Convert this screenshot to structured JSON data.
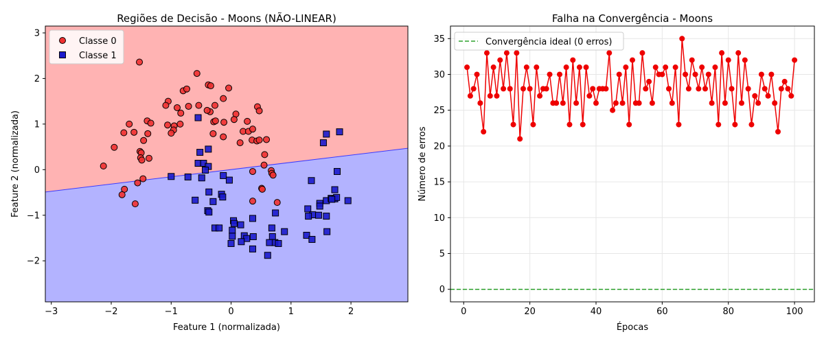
{
  "chart_data": [
    {
      "type": "scatter",
      "title": "Regiões de Decisão - Moons (NÃO-LINEAR)",
      "xlabel": "Feature 1 (normalizada)",
      "ylabel": "Feature 2 (normalizada)",
      "xlim": [
        -3.1,
        2.95
      ],
      "ylim": [
        -2.9,
        3.15
      ],
      "xticks": [
        "−3",
        "−2",
        "−1",
        "0",
        "1",
        "2"
      ],
      "yticks": [
        "−2",
        "−1",
        "0",
        "1",
        "2",
        "3"
      ],
      "decision_boundary": {
        "x": [
          -3.1,
          2.95
        ],
        "y": [
          -0.49,
          0.47
        ]
      },
      "regions": {
        "classe_0_color": "#ffb3b3",
        "classe_1_color": "#b3b3ff"
      },
      "legend_position": "top-left",
      "series": [
        {
          "name": "Classe 0",
          "color": "#ef3030",
          "marker": "circle",
          "points": [
            [
              -1.53,
              2.36
            ],
            [
              -0.57,
              2.11
            ],
            [
              -0.38,
              1.86
            ],
            [
              -0.34,
              1.84
            ],
            [
              -0.04,
              1.79
            ],
            [
              -0.8,
              1.73
            ],
            [
              -0.74,
              1.77
            ],
            [
              -1.05,
              1.5
            ],
            [
              -1.09,
              1.41
            ],
            [
              -0.9,
              1.36
            ],
            [
              -0.71,
              1.39
            ],
            [
              -0.54,
              1.41
            ],
            [
              -0.35,
              1.27
            ],
            [
              -0.4,
              1.3
            ],
            [
              -0.27,
              1.41
            ],
            [
              -0.13,
              1.56
            ],
            [
              -0.84,
              1.24
            ],
            [
              0.44,
              1.38
            ],
            [
              0.47,
              1.29
            ],
            [
              0.08,
              1.22
            ],
            [
              -0.29,
              1.05
            ],
            [
              -0.26,
              1.07
            ],
            [
              -0.12,
              1.04
            ],
            [
              0.05,
              1.1
            ],
            [
              0.27,
              1.06
            ],
            [
              -1.4,
              1.07
            ],
            [
              -1.34,
              1.02
            ],
            [
              -1.06,
              0.98
            ],
            [
              -0.95,
              0.96
            ],
            [
              -0.96,
              0.87
            ],
            [
              -1.0,
              0.8
            ],
            [
              -0.85,
              1.0
            ],
            [
              -1.7,
              1.0
            ],
            [
              -1.62,
              0.82
            ],
            [
              -1.79,
              0.81
            ],
            [
              -1.39,
              0.79
            ],
            [
              -0.3,
              0.79
            ],
            [
              -0.13,
              0.72
            ],
            [
              0.2,
              0.84
            ],
            [
              0.29,
              0.84
            ],
            [
              0.36,
              0.89
            ],
            [
              0.35,
              0.65
            ],
            [
              0.43,
              0.63
            ],
            [
              0.47,
              0.65
            ],
            [
              0.59,
              0.66
            ],
            [
              0.15,
              0.59
            ],
            [
              -1.46,
              0.64
            ],
            [
              -1.95,
              0.49
            ],
            [
              -1.52,
              0.4
            ],
            [
              -1.5,
              0.37
            ],
            [
              -1.51,
              0.26
            ],
            [
              -1.49,
              0.21
            ],
            [
              -1.37,
              0.25
            ],
            [
              -2.13,
              0.08
            ],
            [
              0.56,
              0.33
            ],
            [
              0.55,
              0.1
            ],
            [
              0.67,
              -0.02
            ],
            [
              0.68,
              -0.08
            ],
            [
              0.7,
              -0.12
            ],
            [
              0.36,
              -0.04
            ],
            [
              0.51,
              -0.41
            ],
            [
              0.52,
              -0.43
            ],
            [
              -1.47,
              -0.2
            ],
            [
              -1.56,
              -0.29
            ],
            [
              -1.78,
              -0.43
            ],
            [
              -1.82,
              -0.55
            ],
            [
              -1.6,
              -0.75
            ],
            [
              0.36,
              -0.69
            ],
            [
              0.77,
              -0.72
            ]
          ]
        },
        {
          "name": "Classe 1",
          "color": "#1a1acc",
          "marker": "square",
          "points": [
            [
              -0.55,
              1.14
            ],
            [
              1.59,
              0.78
            ],
            [
              1.81,
              0.83
            ],
            [
              1.54,
              0.59
            ],
            [
              -0.52,
              0.38
            ],
            [
              -0.38,
              0.45
            ],
            [
              -0.55,
              0.14
            ],
            [
              -0.46,
              0.14
            ],
            [
              -0.38,
              0.07
            ],
            [
              -0.43,
              -0.01
            ],
            [
              -1.0,
              -0.15
            ],
            [
              -0.72,
              -0.16
            ],
            [
              -0.49,
              -0.18
            ],
            [
              -0.13,
              -0.13
            ],
            [
              -0.03,
              -0.23
            ],
            [
              -0.37,
              -0.49
            ],
            [
              -0.6,
              -0.67
            ],
            [
              -0.3,
              -0.7
            ],
            [
              -0.16,
              -0.54
            ],
            [
              -0.14,
              -0.6
            ],
            [
              1.34,
              -0.24
            ],
            [
              1.77,
              -0.04
            ],
            [
              1.73,
              -0.44
            ],
            [
              1.59,
              -0.68
            ],
            [
              1.67,
              -0.63
            ],
            [
              1.73,
              -0.64
            ],
            [
              1.76,
              -0.61
            ],
            [
              1.68,
              -0.65
            ],
            [
              1.48,
              -0.74
            ],
            [
              1.95,
              -0.68
            ],
            [
              1.28,
              -0.86
            ],
            [
              1.48,
              -0.8
            ],
            [
              1.36,
              -0.99
            ],
            [
              1.29,
              -1.02
            ],
            [
              1.46,
              -1.0
            ],
            [
              1.59,
              -1.02
            ],
            [
              -0.39,
              -0.9
            ],
            [
              -0.37,
              -0.93
            ],
            [
              0.74,
              -0.95
            ],
            [
              0.36,
              -1.07
            ],
            [
              0.04,
              -1.12
            ],
            [
              0.05,
              -1.18
            ],
            [
              0.16,
              -1.21
            ],
            [
              -0.27,
              -1.28
            ],
            [
              -0.2,
              -1.28
            ],
            [
              0.02,
              -1.33
            ],
            [
              0.68,
              -1.28
            ],
            [
              0.89,
              -1.36
            ],
            [
              1.26,
              -1.44
            ],
            [
              1.35,
              -1.53
            ],
            [
              1.6,
              -1.36
            ],
            [
              0.02,
              -1.46
            ],
            [
              0.22,
              -1.45
            ],
            [
              0.26,
              -1.51
            ],
            [
              0.37,
              -1.47
            ],
            [
              0.17,
              -1.58
            ],
            [
              0.0,
              -1.62
            ],
            [
              0.69,
              -1.47
            ],
            [
              0.73,
              -1.6
            ],
            [
              0.64,
              -1.6
            ],
            [
              0.79,
              -1.62
            ],
            [
              0.36,
              -1.74
            ],
            [
              0.61,
              -1.88
            ]
          ]
        }
      ]
    },
    {
      "type": "line",
      "title": "Falha na Convergência - Moons",
      "xlabel": "Épocas",
      "ylabel": "Número de erros",
      "xlim": [
        -4,
        106
      ],
      "ylim": [
        -1.75,
        36.75
      ],
      "xticks": [
        0,
        20,
        40,
        60,
        80,
        100
      ],
      "yticks": [
        0,
        5,
        10,
        15,
        20,
        25,
        30,
        35
      ],
      "grid": true,
      "legend_position": "top-left",
      "reference_line": {
        "name": "Convergência ideal (0 erros)",
        "y": 0,
        "color": "#2ca02c",
        "style": "dashed"
      },
      "series": [
        {
          "name": "",
          "color": "#ee0000",
          "x": [
            1,
            2,
            3,
            4,
            5,
            6,
            7,
            8,
            9,
            10,
            11,
            12,
            13,
            14,
            15,
            16,
            17,
            18,
            19,
            20,
            21,
            22,
            23,
            24,
            25,
            26,
            27,
            28,
            29,
            30,
            31,
            32,
            33,
            34,
            35,
            36,
            37,
            38,
            39,
            40,
            41,
            42,
            43,
            44,
            45,
            46,
            47,
            48,
            49,
            50,
            51,
            52,
            53,
            54,
            55,
            56,
            57,
            58,
            59,
            60,
            61,
            62,
            63,
            64,
            65,
            66,
            67,
            68,
            69,
            70,
            71,
            72,
            73,
            74,
            75,
            76,
            77,
            78,
            79,
            80,
            81,
            82,
            83,
            84,
            85,
            86,
            87,
            88,
            89,
            90,
            91,
            92,
            93,
            94,
            95,
            96,
            97,
            98,
            99,
            100
          ],
          "values": [
            31,
            27,
            28,
            30,
            26,
            22,
            33,
            27,
            31,
            27,
            32,
            28,
            33,
            28,
            23,
            33,
            21,
            28,
            31,
            28,
            23,
            31,
            27,
            28,
            28,
            30,
            26,
            26,
            30,
            26,
            31,
            23,
            32,
            26,
            31,
            23,
            31,
            27,
            28,
            26,
            28,
            28,
            28,
            33,
            25,
            26,
            30,
            26,
            31,
            23,
            32,
            26,
            26,
            33,
            28,
            29,
            26,
            31,
            30,
            30,
            31,
            28,
            26,
            31,
            23,
            35,
            30,
            28,
            32,
            30,
            28,
            31,
            28,
            30,
            26,
            31,
            23,
            33,
            26,
            32,
            28,
            23,
            33,
            26,
            32,
            28,
            23,
            27,
            26,
            30,
            28,
            27,
            30,
            26,
            22,
            28,
            29,
            28,
            27,
            32
          ]
        }
      ]
    }
  ]
}
